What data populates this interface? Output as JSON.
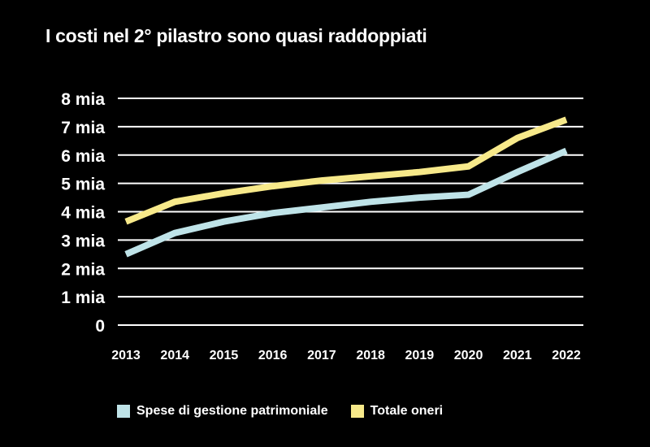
{
  "chart_data": {
    "type": "line",
    "title": "I costi nel 2° pilastro sono quasi raddoppiati",
    "x": [
      "2013",
      "2014",
      "2015",
      "2016",
      "2017",
      "2018",
      "2019",
      "2020",
      "2021",
      "2022"
    ],
    "y_ticks": [
      "0",
      "1 mia",
      "2 mia",
      "3 mia",
      "4 mia",
      "5 mia",
      "6 mia",
      "7 mia",
      "8 mia"
    ],
    "ylim": [
      0,
      8
    ],
    "grid": true,
    "legend_position": "bottom",
    "series": [
      {
        "name": "Spese di gestione patrimoniale",
        "color": "#bfe3e8",
        "values": [
          2.5,
          3.25,
          3.65,
          3.95,
          4.15,
          4.35,
          4.5,
          4.6,
          5.4,
          6.15
        ]
      },
      {
        "name": "Totale oneri",
        "color": "#f7e98a",
        "values": [
          3.65,
          4.35,
          4.65,
          4.9,
          5.1,
          5.25,
          5.4,
          5.6,
          6.6,
          7.25
        ]
      }
    ]
  }
}
